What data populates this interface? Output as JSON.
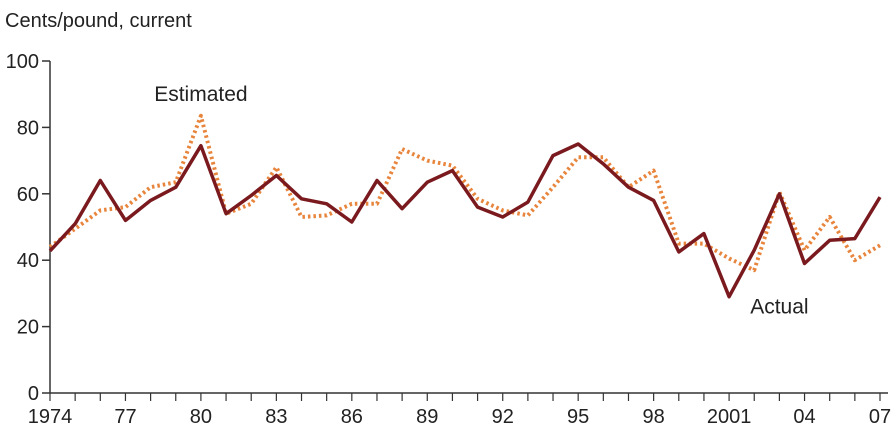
{
  "chart_data": {
    "type": "line",
    "title": "",
    "ylabel": "Cents/pound, current",
    "xlabel": "",
    "ylim": [
      0,
      100
    ],
    "xlim": [
      1974,
      2007
    ],
    "yticks": [
      0,
      20,
      40,
      60,
      80,
      100
    ],
    "ytick_labels": [
      "0",
      "20",
      "40",
      "60",
      "80",
      "100"
    ],
    "xtick_values": [
      1974,
      1977,
      1980,
      1983,
      1986,
      1989,
      1992,
      1995,
      1998,
      2001,
      2004,
      2007
    ],
    "xtick_labels": [
      "1974",
      "77",
      "80",
      "83",
      "86",
      "89",
      "92",
      "95",
      "98",
      "2001",
      "04",
      "07"
    ],
    "x": [
      1974,
      1975,
      1976,
      1977,
      1978,
      1979,
      1980,
      1981,
      1982,
      1983,
      1984,
      1985,
      1986,
      1987,
      1988,
      1989,
      1990,
      1991,
      1992,
      1993,
      1994,
      1995,
      1996,
      1997,
      1998,
      1999,
      2000,
      2001,
      2002,
      2003,
      2004,
      2005,
      2006,
      2007
    ],
    "series": [
      {
        "name": "Actual",
        "color": "#7a1a1e",
        "style": "solid",
        "values": [
          42.8,
          51.0,
          64.0,
          52.0,
          58.0,
          62.0,
          74.5,
          54.0,
          59.5,
          65.5,
          58.5,
          57.0,
          51.5,
          64.0,
          55.5,
          63.5,
          67.0,
          56.0,
          53.0,
          57.5,
          71.5,
          75.0,
          69.0,
          62.0,
          58.0,
          42.5,
          48.0,
          29.0,
          43.0,
          60.0,
          39.0,
          46.0,
          46.5,
          59.0
        ]
      },
      {
        "name": "Estimated",
        "color": "#e8853d",
        "style": "dotted",
        "values": [
          44.0,
          49.5,
          55.0,
          56.0,
          62.0,
          63.5,
          83.5,
          54.0,
          57.0,
          68.0,
          53.0,
          53.5,
          57.0,
          57.0,
          73.5,
          70.0,
          68.5,
          58.5,
          55.0,
          53.5,
          62.0,
          71.0,
          71.0,
          62.0,
          67.0,
          45.0,
          45.0,
          40.5,
          37.0,
          60.5,
          43.0,
          53.0,
          40.0,
          44.5
        ]
      }
    ],
    "annotations": [
      {
        "text": "Estimated",
        "series": "Estimated",
        "x": 1980,
        "y": 88
      },
      {
        "text": "Actual",
        "series": "Actual",
        "x": 2003,
        "y": 24
      }
    ],
    "grid": false,
    "legend": "none"
  }
}
